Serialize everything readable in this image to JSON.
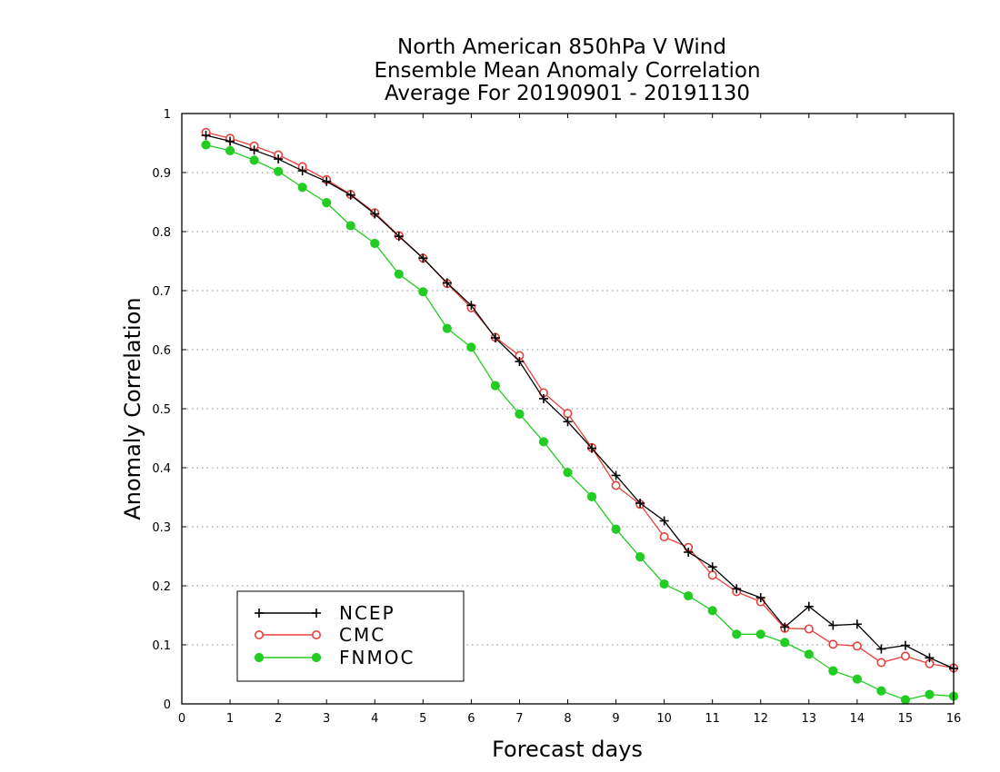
{
  "chart_data": {
    "type": "line",
    "title": [
      "North American 850hPa V Wind",
      "Ensemble Mean Anomaly Correlation",
      "Average For 20190901 - 20191130"
    ],
    "xlabel": "Forecast days",
    "ylabel": "Anomaly Correlation",
    "xlim": [
      0,
      16
    ],
    "ylim": [
      0,
      1
    ],
    "x_ticks": [
      "0",
      "1",
      "2",
      "3",
      "4",
      "5",
      "6",
      "7",
      "8",
      "9",
      "10",
      "11",
      "12",
      "13",
      "14",
      "15",
      "16"
    ],
    "y_ticks": [
      "0",
      "0.1",
      "0.2",
      "0.3",
      "0.4",
      "0.5",
      "0.6",
      "0.7",
      "0.8",
      "0.9",
      "1"
    ],
    "grid": "horizontal dotted",
    "legend_position": "bottom-left",
    "x": [
      0.5,
      1,
      1.5,
      2,
      2.5,
      3,
      3.5,
      4,
      4.5,
      5,
      5.5,
      6,
      6.5,
      7,
      7.5,
      8,
      8.5,
      9,
      9.5,
      10,
      10.5,
      11,
      11.5,
      12,
      12.5,
      13,
      13.5,
      14,
      14.5,
      15,
      15.5,
      16
    ],
    "series": [
      {
        "name": "NCEP",
        "color": "#000000",
        "marker": "plus",
        "values": [
          0.963,
          0.953,
          0.938,
          0.923,
          0.903,
          0.885,
          0.862,
          0.83,
          0.792,
          0.755,
          0.713,
          0.675,
          0.62,
          0.58,
          0.517,
          0.478,
          0.433,
          0.387,
          0.34,
          0.31,
          0.257,
          0.232,
          0.195,
          0.18,
          0.13,
          0.165,
          0.133,
          0.135,
          0.093,
          0.099,
          0.078,
          0.06
        ]
      },
      {
        "name": "CMC",
        "color": "#e8413c",
        "marker": "open-circle",
        "values": [
          0.968,
          0.958,
          0.945,
          0.93,
          0.91,
          0.888,
          0.863,
          0.832,
          0.793,
          0.755,
          0.712,
          0.671,
          0.621,
          0.59,
          0.527,
          0.492,
          0.434,
          0.37,
          0.338,
          0.283,
          0.265,
          0.218,
          0.19,
          0.173,
          0.128,
          0.127,
          0.101,
          0.098,
          0.07,
          0.081,
          0.068,
          0.061
        ]
      },
      {
        "name": "FNMOC",
        "color": "#22cc22",
        "marker": "filled-circle",
        "values": [
          0.947,
          0.937,
          0.921,
          0.902,
          0.875,
          0.849,
          0.81,
          0.78,
          0.728,
          0.698,
          0.636,
          0.604,
          0.539,
          0.491,
          0.444,
          0.392,
          0.351,
          0.296,
          0.249,
          0.203,
          0.183,
          0.158,
          0.118,
          0.118,
          0.104,
          0.084,
          0.056,
          0.042,
          0.022,
          0.007,
          0.016,
          0.013
        ]
      }
    ]
  }
}
